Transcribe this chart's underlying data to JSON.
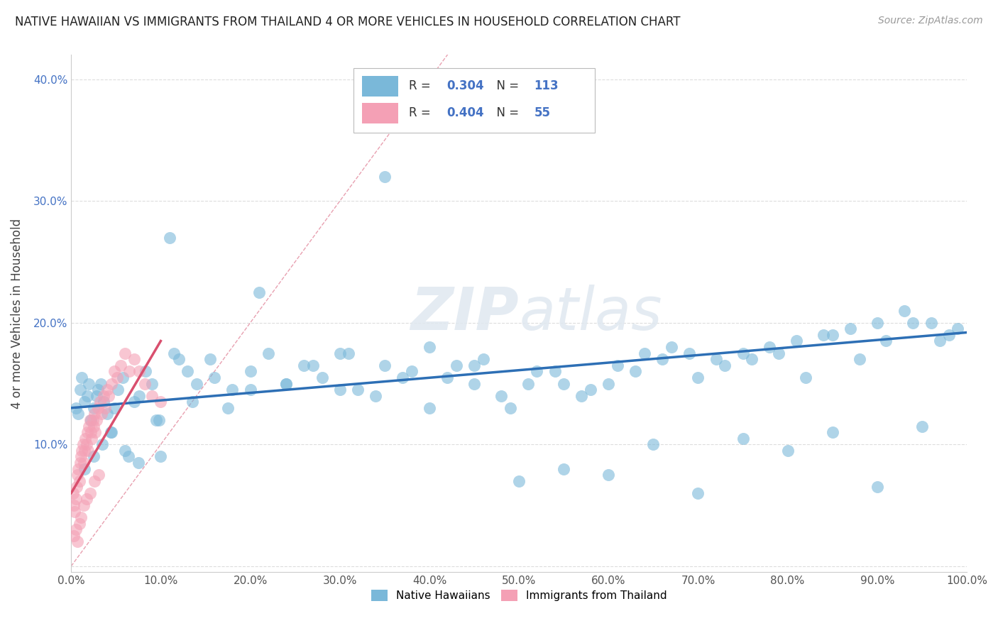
{
  "title": "NATIVE HAWAIIAN VS IMMIGRANTS FROM THAILAND 4 OR MORE VEHICLES IN HOUSEHOLD CORRELATION CHART",
  "source": "Source: ZipAtlas.com",
  "ylabel": "4 or more Vehicles in Household",
  "xlim": [
    0.0,
    1.0
  ],
  "ylim": [
    -0.005,
    0.42
  ],
  "xticks": [
    0.0,
    0.1,
    0.2,
    0.3,
    0.4,
    0.5,
    0.6,
    0.7,
    0.8,
    0.9,
    1.0
  ],
  "yticks": [
    0.0,
    0.1,
    0.2,
    0.3,
    0.4
  ],
  "xtick_labels": [
    "0.0%",
    "10.0%",
    "20.0%",
    "30.0%",
    "40.0%",
    "50.0%",
    "60.0%",
    "70.0%",
    "80.0%",
    "90.0%",
    "100.0%"
  ],
  "ytick_labels": [
    "",
    "10.0%",
    "20.0%",
    "30.0%",
    "40.0%"
  ],
  "blue_color": "#7ab8d9",
  "pink_color": "#f4a0b5",
  "trend_blue": "#2d6fb5",
  "trend_pink": "#d94f6e",
  "diag_color": "#f0a0b0",
  "legend_r_blue": "0.304",
  "legend_n_blue": "113",
  "legend_r_pink": "0.404",
  "legend_n_pink": "55",
  "watermark_zip": "ZIP",
  "watermark_atlas": "atlas",
  "background_color": "#ffffff",
  "native_hawaiian_x": [
    0.005,
    0.008,
    0.01,
    0.012,
    0.015,
    0.018,
    0.02,
    0.022,
    0.025,
    0.028,
    0.03,
    0.033,
    0.036,
    0.04,
    0.044,
    0.048,
    0.052,
    0.058,
    0.064,
    0.07,
    0.076,
    0.083,
    0.09,
    0.098,
    0.11,
    0.12,
    0.13,
    0.14,
    0.16,
    0.18,
    0.2,
    0.22,
    0.24,
    0.26,
    0.28,
    0.3,
    0.32,
    0.35,
    0.37,
    0.4,
    0.43,
    0.46,
    0.49,
    0.52,
    0.55,
    0.58,
    0.61,
    0.64,
    0.67,
    0.7,
    0.73,
    0.76,
    0.79,
    0.82,
    0.85,
    0.88,
    0.91,
    0.94,
    0.97,
    0.99,
    0.015,
    0.025,
    0.035,
    0.045,
    0.06,
    0.075,
    0.095,
    0.115,
    0.135,
    0.155,
    0.175,
    0.21,
    0.24,
    0.27,
    0.31,
    0.34,
    0.38,
    0.42,
    0.45,
    0.48,
    0.51,
    0.54,
    0.57,
    0.6,
    0.63,
    0.66,
    0.69,
    0.72,
    0.75,
    0.78,
    0.81,
    0.84,
    0.87,
    0.9,
    0.93,
    0.96,
    0.98,
    0.2,
    0.3,
    0.45,
    0.55,
    0.65,
    0.75,
    0.85,
    0.95,
    0.35,
    0.5,
    0.7,
    0.9,
    0.1,
    0.4,
    0.6,
    0.8
  ],
  "native_hawaiian_y": [
    0.13,
    0.125,
    0.145,
    0.155,
    0.135,
    0.14,
    0.15,
    0.12,
    0.13,
    0.14,
    0.145,
    0.15,
    0.135,
    0.125,
    0.11,
    0.13,
    0.145,
    0.155,
    0.09,
    0.135,
    0.14,
    0.16,
    0.15,
    0.12,
    0.27,
    0.17,
    0.16,
    0.15,
    0.155,
    0.145,
    0.16,
    0.175,
    0.15,
    0.165,
    0.155,
    0.175,
    0.145,
    0.165,
    0.155,
    0.18,
    0.165,
    0.17,
    0.13,
    0.16,
    0.15,
    0.145,
    0.165,
    0.175,
    0.18,
    0.155,
    0.165,
    0.17,
    0.175,
    0.155,
    0.19,
    0.17,
    0.185,
    0.2,
    0.185,
    0.195,
    0.08,
    0.09,
    0.1,
    0.11,
    0.095,
    0.085,
    0.12,
    0.175,
    0.135,
    0.17,
    0.13,
    0.225,
    0.15,
    0.165,
    0.175,
    0.14,
    0.16,
    0.155,
    0.165,
    0.14,
    0.15,
    0.16,
    0.14,
    0.15,
    0.16,
    0.17,
    0.175,
    0.17,
    0.175,
    0.18,
    0.185,
    0.19,
    0.195,
    0.2,
    0.21,
    0.2,
    0.19,
    0.145,
    0.145,
    0.15,
    0.08,
    0.1,
    0.105,
    0.11,
    0.115,
    0.32,
    0.07,
    0.06,
    0.065,
    0.09,
    0.13,
    0.075,
    0.095
  ],
  "thailand_x": [
    0.002,
    0.003,
    0.004,
    0.005,
    0.006,
    0.007,
    0.008,
    0.009,
    0.01,
    0.011,
    0.012,
    0.013,
    0.014,
    0.015,
    0.016,
    0.017,
    0.018,
    0.019,
    0.02,
    0.021,
    0.022,
    0.023,
    0.024,
    0.025,
    0.026,
    0.027,
    0.028,
    0.03,
    0.032,
    0.034,
    0.036,
    0.038,
    0.04,
    0.042,
    0.045,
    0.048,
    0.051,
    0.055,
    0.06,
    0.065,
    0.07,
    0.076,
    0.082,
    0.09,
    0.1,
    0.003,
    0.005,
    0.007,
    0.009,
    0.011,
    0.014,
    0.017,
    0.021,
    0.026,
    0.031
  ],
  "thailand_y": [
    0.06,
    0.05,
    0.045,
    0.055,
    0.065,
    0.075,
    0.08,
    0.07,
    0.085,
    0.09,
    0.095,
    0.1,
    0.085,
    0.095,
    0.105,
    0.1,
    0.11,
    0.095,
    0.115,
    0.12,
    0.11,
    0.105,
    0.12,
    0.115,
    0.125,
    0.11,
    0.12,
    0.13,
    0.135,
    0.125,
    0.14,
    0.13,
    0.145,
    0.14,
    0.15,
    0.16,
    0.155,
    0.165,
    0.175,
    0.16,
    0.17,
    0.16,
    0.15,
    0.14,
    0.135,
    0.025,
    0.03,
    0.02,
    0.035,
    0.04,
    0.05,
    0.055,
    0.06,
    0.07,
    0.075
  ],
  "trend_blue_x0": 0.0,
  "trend_blue_y0": 0.13,
  "trend_blue_x1": 1.0,
  "trend_blue_y1": 0.192,
  "trend_pink_x0": 0.0,
  "trend_pink_y0": 0.06,
  "trend_pink_x1": 0.1,
  "trend_pink_y1": 0.185
}
